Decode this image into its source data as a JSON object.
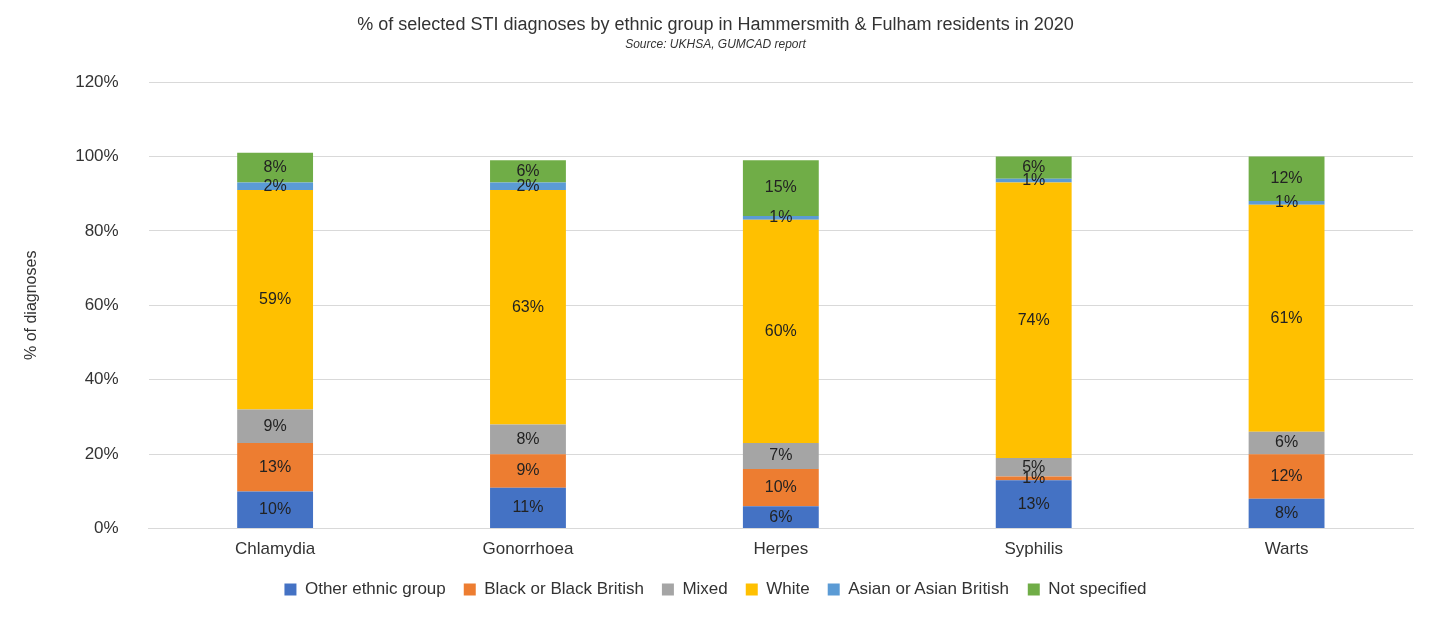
{
  "chart_data": {
    "type": "bar",
    "stacked": true,
    "title": "% of selected STI diagnoses by ethnic group in Hammersmith & Fulham residents in 2020",
    "annotations": [
      "Source: UKHSA, GUMCAD report"
    ],
    "ylabel": "% of diagnoses",
    "categories": [
      "Chlamydia",
      "Gonorrhoea",
      "Herpes",
      "Syphilis",
      "Warts"
    ],
    "series": [
      {
        "name": "Other ethnic group",
        "color": "#4472c4",
        "values": [
          10,
          11,
          6,
          13,
          8
        ],
        "value_labels": [
          "10%",
          "11%",
          "6%",
          "13%",
          "8%"
        ]
      },
      {
        "name": "Black or Black British",
        "color": "#ed7d31",
        "values": [
          13,
          9,
          10,
          1,
          12
        ],
        "value_labels": [
          "13%",
          "9%",
          "10%",
          "1%",
          "12%"
        ]
      },
      {
        "name": "Mixed",
        "color": "#a5a5a5",
        "values": [
          9,
          8,
          7,
          5,
          6
        ],
        "value_labels": [
          "9%",
          "8%",
          "7%",
          "5%",
          "6%"
        ]
      },
      {
        "name": "White",
        "color": "#ffc000",
        "values": [
          59,
          63,
          60,
          74,
          61
        ],
        "value_labels": [
          "59%",
          "63%",
          "60%",
          "74%",
          "61%"
        ]
      },
      {
        "name": "Asian or Asian British",
        "color": "#5b9bd5",
        "values": [
          2,
          2,
          1,
          1,
          1
        ],
        "value_labels": [
          "2%",
          "2%",
          "1%",
          "1%",
          "1%"
        ]
      },
      {
        "name": "Not specified",
        "color": "#70ad47",
        "values": [
          8,
          6,
          15,
          6,
          12
        ],
        "value_labels": [
          "8%",
          "6%",
          "15%",
          "6%",
          "12%"
        ]
      }
    ],
    "ylim": [
      0,
      120
    ],
    "yticks": [
      {
        "value": 0,
        "label": "0%"
      },
      {
        "value": 20,
        "label": "20%"
      },
      {
        "value": 40,
        "label": "40%"
      },
      {
        "value": 60,
        "label": "60%"
      },
      {
        "value": 80,
        "label": "80%"
      },
      {
        "value": 100,
        "label": "100%"
      },
      {
        "value": 120,
        "label": "120%"
      }
    ],
    "grid": "y",
    "legend": "bottom"
  }
}
